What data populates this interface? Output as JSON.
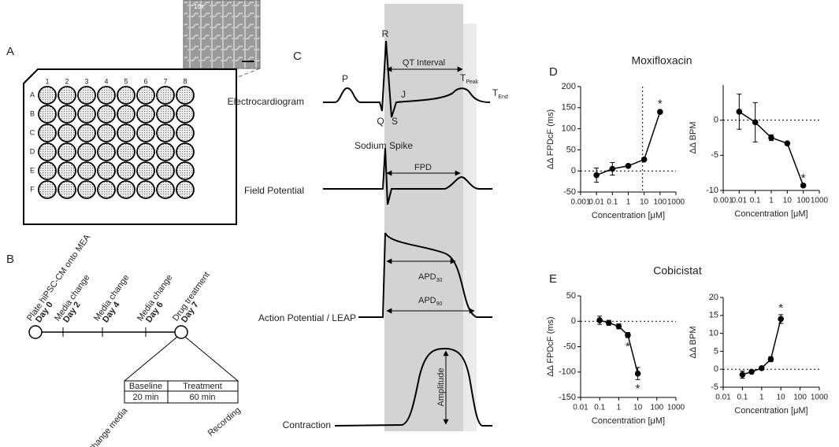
{
  "panel_a": {
    "letter": "A",
    "columns": [
      "1",
      "2",
      "3",
      "4",
      "5",
      "6",
      "7",
      "8"
    ],
    "rows": [
      "A",
      "B",
      "C",
      "D",
      "E",
      "F"
    ],
    "magnification": "10x"
  },
  "panel_b": {
    "letter": "B",
    "events": [
      {
        "label": "Plate hiPSC-CM onto MEA",
        "day": "Day 0"
      },
      {
        "label": "Media change",
        "day": "Day 2"
      },
      {
        "label": "Media change",
        "day": "Day 4"
      },
      {
        "label": "Media change",
        "day": "Day 6"
      },
      {
        "label": "Drug treatment",
        "day": "Day 7"
      }
    ],
    "protocol": {
      "phases": [
        {
          "name": "Baseline",
          "duration": "20 min"
        },
        {
          "name": "Treatment",
          "duration": "60 min"
        }
      ],
      "start": "Change media",
      "end": "Recording"
    }
  },
  "panel_c": {
    "letter": "C",
    "traces": [
      "Electrocardiogram",
      "Field Potential",
      "Action Potential / LEAP",
      "Contraction"
    ],
    "labels": {
      "p": "P",
      "r": "R",
      "q": "Q",
      "s": "S",
      "j": "J",
      "t": "T",
      "peak": "Peak",
      "end": "End",
      "qt": "QT Interval",
      "sodium": "Sodium Spike",
      "fpd": "FPD",
      "apd": "APD",
      "apd30": "30",
      "apd90": "90",
      "amplitude": "Amplitude"
    }
  },
  "panel_d": {
    "letter": "D",
    "title": "Moxifloxacin"
  },
  "panel_e": {
    "letter": "E",
    "title": "Cobicistat"
  },
  "chart_data": [
    {
      "type": "line",
      "ylabel": "ΔΔ FPDcF (ms)",
      "xlabel": "Concentration [μM]",
      "xscale": "log",
      "xlim": [
        0.001,
        1000
      ],
      "xticks": [
        0.001,
        0.01,
        0.1,
        1,
        10,
        100,
        1000
      ],
      "ylim": [
        -50,
        200
      ],
      "yticks": [
        -50,
        0,
        50,
        100,
        150,
        200
      ],
      "hline": 0,
      "vline": 8,
      "significance_label": "*",
      "significance_side": "above",
      "x": [
        0.01,
        0.1,
        1,
        10,
        100
      ],
      "series": [
        {
          "color": "#000000",
          "values": [
            -10,
            5,
            12,
            27,
            140
          ],
          "errors": [
            17,
            15,
            4,
            4,
            3
          ],
          "significant": [
            false,
            false,
            false,
            false,
            true
          ]
        }
      ]
    },
    {
      "type": "line",
      "ylabel": "ΔΔ BPM",
      "xlabel": "Concentration [μM]",
      "xscale": "log",
      "xlim": [
        0.001,
        1000
      ],
      "xticks": [
        0.001,
        0.01,
        0.1,
        1,
        10,
        100,
        1000
      ],
      "ylim": [
        -10,
        5
      ],
      "yticks": [
        -10,
        -5,
        0
      ],
      "hline": 0,
      "significance_label": "*",
      "significance_side": "above",
      "x": [
        0.01,
        0.1,
        1,
        10,
        100
      ],
      "series": [
        {
          "color": "#000000",
          "values": [
            1.2,
            -0.3,
            -2.5,
            -3.3,
            -9.3
          ],
          "errors": [
            2.5,
            2.8,
            0.4,
            0.1,
            0.1
          ],
          "significant": [
            false,
            false,
            false,
            false,
            true
          ]
        }
      ]
    },
    {
      "type": "line",
      "ylabel": "ΔΔ FPDcF (ms)",
      "xlabel": "Concentration [μM]",
      "xscale": "log",
      "xlim": [
        0.01,
        1000
      ],
      "xticks": [
        0.01,
        0.1,
        1,
        10,
        100,
        1000
      ],
      "ylim": [
        -150,
        50
      ],
      "yticks": [
        -150,
        -100,
        -50,
        0,
        50
      ],
      "hline": 0,
      "significance_label": "*",
      "significance_side": "below",
      "x": [
        0.1,
        0.3,
        1,
        3,
        10
      ],
      "series": [
        {
          "color": "#000000",
          "values": [
            2,
            -3,
            -10,
            -27,
            -103
          ],
          "errors": [
            8,
            5,
            5,
            5,
            12
          ],
          "significant": [
            false,
            false,
            false,
            true,
            true
          ]
        }
      ]
    },
    {
      "type": "line",
      "ylabel": "ΔΔ BPM",
      "xlabel": "Concentration [μM]",
      "xscale": "log",
      "xlim": [
        0.01,
        1000
      ],
      "xticks": [
        0.01,
        0.1,
        1,
        10,
        100,
        1000
      ],
      "ylim": [
        -5,
        20
      ],
      "yticks": [
        -5,
        0,
        5,
        10,
        15,
        20
      ],
      "hline": 0,
      "significance_label": "*",
      "significance_side": "above",
      "x": [
        0.1,
        0.3,
        1,
        3,
        10
      ],
      "series": [
        {
          "color": "#000000",
          "values": [
            -1.5,
            -0.7,
            0.3,
            2.8,
            14
          ],
          "errors": [
            1,
            0.3,
            0.3,
            0.7,
            1.2
          ],
          "significant": [
            false,
            false,
            false,
            false,
            true
          ]
        }
      ]
    }
  ]
}
